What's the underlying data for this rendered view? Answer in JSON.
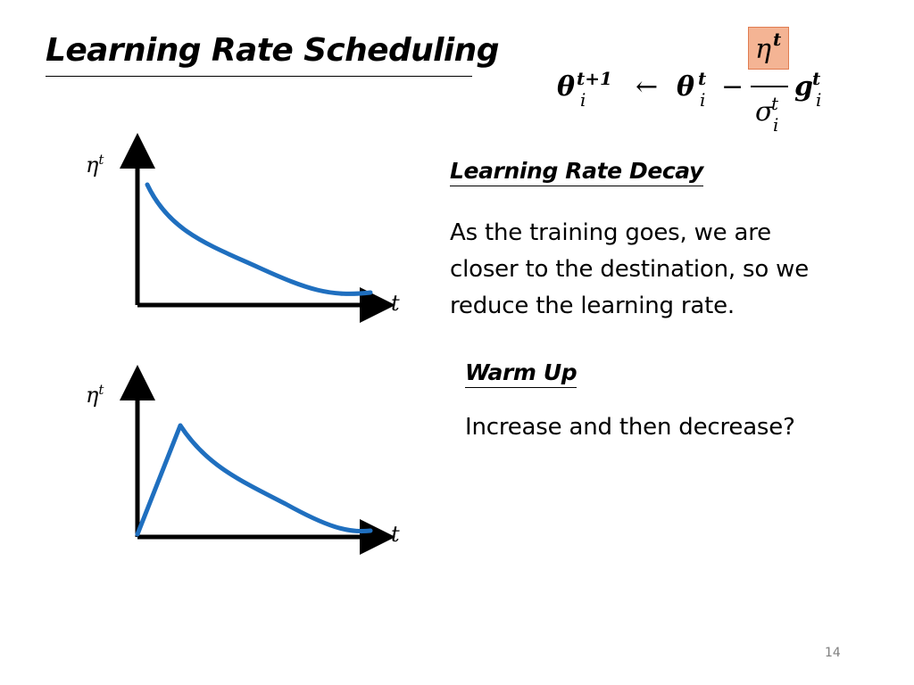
{
  "slide": {
    "title": "Learning Rate Scheduling",
    "page_number": "14",
    "formula": {
      "lhs_symbol": "θ",
      "lhs_superscript": "t+1",
      "lhs_subscript": "i",
      "arrow": "←",
      "term1_symbol": "θ",
      "term1_superscript": "t",
      "term1_subscript": "i",
      "minus": "−",
      "numerator_symbol": "η",
      "numerator_superscript": "t",
      "denominator_symbol": "σ",
      "denominator_superscript": "t",
      "denominator_subscript": "i",
      "gradient_symbol": "g",
      "gradient_superscript": "t",
      "gradient_subscript": "i",
      "highlight_color": "#f4b494"
    },
    "sections": {
      "decay": {
        "heading": "Learning Rate Decay",
        "lines": [
          "As the training goes, we are",
          "closer to the destination, so we",
          "reduce the learning rate."
        ]
      },
      "warmup": {
        "heading": "Warm Up",
        "text": "Increase and then decrease?"
      }
    },
    "plots": {
      "decay": {
        "y_label": "η",
        "y_label_sup": "t",
        "x_label": "t"
      },
      "warmup": {
        "y_label": "η",
        "y_label_sup": "t",
        "x_label": "t"
      }
    },
    "curve_color": "#1f6fbf"
  }
}
